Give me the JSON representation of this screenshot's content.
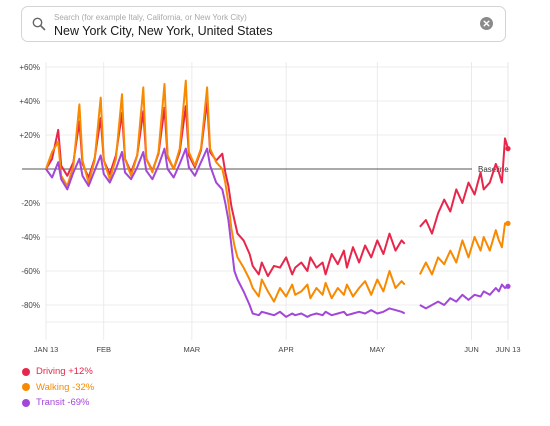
{
  "search": {
    "placeholder": "Search (for example Italy, California, or New York City)",
    "value": "New York City, New York, United States",
    "icon": "search-icon",
    "clear_icon": "clear-icon"
  },
  "colors": {
    "driving": "#e8264b",
    "walking": "#f78a00",
    "transit": "#a347d8",
    "grid": "#e6e6e6",
    "baseline": "#555555"
  },
  "chart_data": {
    "type": "line",
    "ylabel": "",
    "xlabel": "",
    "ylim": [
      -90,
      65
    ],
    "grid": true,
    "y_ticks": [
      "+60%",
      "+40%",
      "+20%",
      "-20%",
      "-40%",
      "-60%",
      "-80%"
    ],
    "y_tick_values": [
      60,
      40,
      20,
      -20,
      -40,
      -60,
      -80
    ],
    "baseline_label": "Baseline",
    "x_ticks": [
      {
        "label": "JAN 13",
        "day": 0
      },
      {
        "label": "FEB",
        "day": 19
      },
      {
        "label": "MAR",
        "day": 48
      },
      {
        "label": "APR",
        "day": 79
      },
      {
        "label": "MAY",
        "day": 109
      },
      {
        "label": "JUN",
        "day": 140
      },
      {
        "label": "JUN 13",
        "day": 152
      }
    ],
    "gaps": [
      [
        118,
        123
      ]
    ],
    "series": [
      {
        "name": "Driving",
        "legend": "Driving +12%",
        "color_key": "driving",
        "points": [
          [
            0,
            0
          ],
          [
            2,
            6
          ],
          [
            4,
            23
          ],
          [
            5,
            2
          ],
          [
            7,
            -4
          ],
          [
            9,
            4
          ],
          [
            11,
            28
          ],
          [
            12,
            3
          ],
          [
            14,
            -5
          ],
          [
            16,
            6
          ],
          [
            18,
            30
          ],
          [
            19,
            5
          ],
          [
            21,
            -3
          ],
          [
            23,
            8
          ],
          [
            25,
            33
          ],
          [
            26,
            6
          ],
          [
            28,
            -2
          ],
          [
            30,
            8
          ],
          [
            32,
            34
          ],
          [
            33,
            6
          ],
          [
            35,
            -1
          ],
          [
            37,
            9
          ],
          [
            39,
            36
          ],
          [
            40,
            7
          ],
          [
            42,
            0
          ],
          [
            44,
            10
          ],
          [
            46,
            37
          ],
          [
            47,
            8
          ],
          [
            49,
            1
          ],
          [
            51,
            11
          ],
          [
            53,
            40
          ],
          [
            54,
            10
          ],
          [
            56,
            5
          ],
          [
            58,
            9
          ],
          [
            59,
            -2
          ],
          [
            60,
            -10
          ],
          [
            61,
            -22
          ],
          [
            62,
            -30
          ],
          [
            63,
            -38
          ],
          [
            65,
            -42
          ],
          [
            67,
            -50
          ],
          [
            68,
            -57
          ],
          [
            70,
            -62
          ],
          [
            71,
            -55
          ],
          [
            73,
            -63
          ],
          [
            75,
            -57
          ],
          [
            77,
            -58
          ],
          [
            79,
            -52
          ],
          [
            81,
            -62
          ],
          [
            82,
            -58
          ],
          [
            84,
            -55
          ],
          [
            86,
            -60
          ],
          [
            87,
            -52
          ],
          [
            89,
            -58
          ],
          [
            91,
            -55
          ],
          [
            92,
            -62
          ],
          [
            94,
            -50
          ],
          [
            96,
            -56
          ],
          [
            98,
            -48
          ],
          [
            99,
            -58
          ],
          [
            101,
            -46
          ],
          [
            103,
            -55
          ],
          [
            105,
            -45
          ],
          [
            107,
            -52
          ],
          [
            109,
            -42
          ],
          [
            111,
            -50
          ],
          [
            113,
            -38
          ],
          [
            115,
            -48
          ],
          [
            117,
            -42
          ],
          [
            118,
            -44
          ],
          [
            123,
            -34
          ],
          [
            125,
            -30
          ],
          [
            127,
            -38
          ],
          [
            129,
            -26
          ],
          [
            131,
            -18
          ],
          [
            133,
            -25
          ],
          [
            135,
            -12
          ],
          [
            137,
            -20
          ],
          [
            139,
            -8
          ],
          [
            141,
            -15
          ],
          [
            143,
            -2
          ],
          [
            144,
            -12
          ],
          [
            146,
            -8
          ],
          [
            148,
            3
          ],
          [
            149,
            -2
          ],
          [
            150,
            -8
          ],
          [
            151,
            18
          ],
          [
            152,
            12
          ]
        ]
      },
      {
        "name": "Walking",
        "legend": "Walking -32%",
        "color_key": "walking",
        "points": [
          [
            0,
            0
          ],
          [
            2,
            10
          ],
          [
            4,
            16
          ],
          [
            5,
            -4
          ],
          [
            7,
            -10
          ],
          [
            9,
            2
          ],
          [
            11,
            38
          ],
          [
            12,
            5
          ],
          [
            14,
            -8
          ],
          [
            16,
            5
          ],
          [
            18,
            42
          ],
          [
            19,
            5
          ],
          [
            21,
            -6
          ],
          [
            23,
            6
          ],
          [
            25,
            44
          ],
          [
            26,
            6
          ],
          [
            28,
            -4
          ],
          [
            30,
            8
          ],
          [
            32,
            48
          ],
          [
            33,
            6
          ],
          [
            35,
            -2
          ],
          [
            37,
            10
          ],
          [
            39,
            50
          ],
          [
            40,
            8
          ],
          [
            42,
            0
          ],
          [
            44,
            12
          ],
          [
            46,
            52
          ],
          [
            47,
            10
          ],
          [
            49,
            2
          ],
          [
            51,
            12
          ],
          [
            53,
            48
          ],
          [
            54,
            12
          ],
          [
            56,
            4
          ],
          [
            58,
            0
          ],
          [
            59,
            -8
          ],
          [
            60,
            -20
          ],
          [
            61,
            -35
          ],
          [
            62,
            -45
          ],
          [
            63,
            -52
          ],
          [
            65,
            -58
          ],
          [
            67,
            -65
          ],
          [
            68,
            -70
          ],
          [
            70,
            -75
          ],
          [
            71,
            -65
          ],
          [
            73,
            -72
          ],
          [
            75,
            -78
          ],
          [
            77,
            -70
          ],
          [
            79,
            -75
          ],
          [
            81,
            -68
          ],
          [
            82,
            -74
          ],
          [
            84,
            -72
          ],
          [
            86,
            -68
          ],
          [
            87,
            -76
          ],
          [
            89,
            -70
          ],
          [
            91,
            -74
          ],
          [
            92,
            -67
          ],
          [
            94,
            -76
          ],
          [
            96,
            -70
          ],
          [
            98,
            -74
          ],
          [
            99,
            -68
          ],
          [
            101,
            -75
          ],
          [
            103,
            -70
          ],
          [
            105,
            -66
          ],
          [
            107,
            -74
          ],
          [
            109,
            -65
          ],
          [
            111,
            -72
          ],
          [
            113,
            -60
          ],
          [
            115,
            -70
          ],
          [
            117,
            -66
          ],
          [
            118,
            -68
          ],
          [
            123,
            -62
          ],
          [
            125,
            -55
          ],
          [
            127,
            -62
          ],
          [
            129,
            -52
          ],
          [
            131,
            -56
          ],
          [
            133,
            -48
          ],
          [
            135,
            -55
          ],
          [
            137,
            -42
          ],
          [
            139,
            -52
          ],
          [
            141,
            -40
          ],
          [
            143,
            -48
          ],
          [
            144,
            -40
          ],
          [
            146,
            -48
          ],
          [
            148,
            -36
          ],
          [
            149,
            -42
          ],
          [
            150,
            -46
          ],
          [
            151,
            -32
          ],
          [
            152,
            -32
          ]
        ]
      },
      {
        "name": "Transit",
        "legend": "Transit -69%",
        "color_key": "transit",
        "points": [
          [
            0,
            0
          ],
          [
            2,
            -5
          ],
          [
            4,
            4
          ],
          [
            5,
            -6
          ],
          [
            7,
            -12
          ],
          [
            9,
            -2
          ],
          [
            11,
            6
          ],
          [
            12,
            -4
          ],
          [
            14,
            -10
          ],
          [
            16,
            -1
          ],
          [
            18,
            8
          ],
          [
            19,
            -3
          ],
          [
            21,
            -8
          ],
          [
            23,
            0
          ],
          [
            25,
            10
          ],
          [
            26,
            -2
          ],
          [
            28,
            -6
          ],
          [
            30,
            1
          ],
          [
            32,
            10
          ],
          [
            33,
            -1
          ],
          [
            35,
            -6
          ],
          [
            37,
            2
          ],
          [
            39,
            12
          ],
          [
            40,
            0
          ],
          [
            42,
            -5
          ],
          [
            44,
            3
          ],
          [
            46,
            12
          ],
          [
            47,
            1
          ],
          [
            49,
            -4
          ],
          [
            51,
            4
          ],
          [
            53,
            12
          ],
          [
            54,
            2
          ],
          [
            56,
            -8
          ],
          [
            58,
            -12
          ],
          [
            59,
            -20
          ],
          [
            60,
            -30
          ],
          [
            61,
            -45
          ],
          [
            62,
            -60
          ],
          [
            63,
            -65
          ],
          [
            65,
            -72
          ],
          [
            67,
            -80
          ],
          [
            68,
            -85
          ],
          [
            70,
            -86
          ],
          [
            71,
            -84
          ],
          [
            73,
            -85
          ],
          [
            75,
            -86
          ],
          [
            77,
            -84
          ],
          [
            79,
            -87
          ],
          [
            81,
            -85
          ],
          [
            82,
            -86
          ],
          [
            84,
            -85
          ],
          [
            86,
            -87
          ],
          [
            87,
            -86
          ],
          [
            89,
            -85
          ],
          [
            91,
            -86
          ],
          [
            92,
            -84
          ],
          [
            94,
            -86
          ],
          [
            96,
            -85
          ],
          [
            98,
            -84
          ],
          [
            99,
            -86
          ],
          [
            101,
            -85
          ],
          [
            103,
            -84
          ],
          [
            105,
            -85
          ],
          [
            107,
            -83
          ],
          [
            109,
            -85
          ],
          [
            111,
            -84
          ],
          [
            113,
            -82
          ],
          [
            115,
            -83
          ],
          [
            117,
            -84
          ],
          [
            118,
            -85
          ],
          [
            123,
            -80
          ],
          [
            125,
            -82
          ],
          [
            127,
            -80
          ],
          [
            129,
            -78
          ],
          [
            131,
            -80
          ],
          [
            133,
            -76
          ],
          [
            135,
            -78
          ],
          [
            137,
            -74
          ],
          [
            139,
            -77
          ],
          [
            141,
            -74
          ],
          [
            143,
            -75
          ],
          [
            144,
            -72
          ],
          [
            146,
            -74
          ],
          [
            148,
            -70
          ],
          [
            149,
            -72
          ],
          [
            150,
            -68
          ],
          [
            151,
            -70
          ],
          [
            152,
            -69
          ]
        ]
      }
    ]
  }
}
